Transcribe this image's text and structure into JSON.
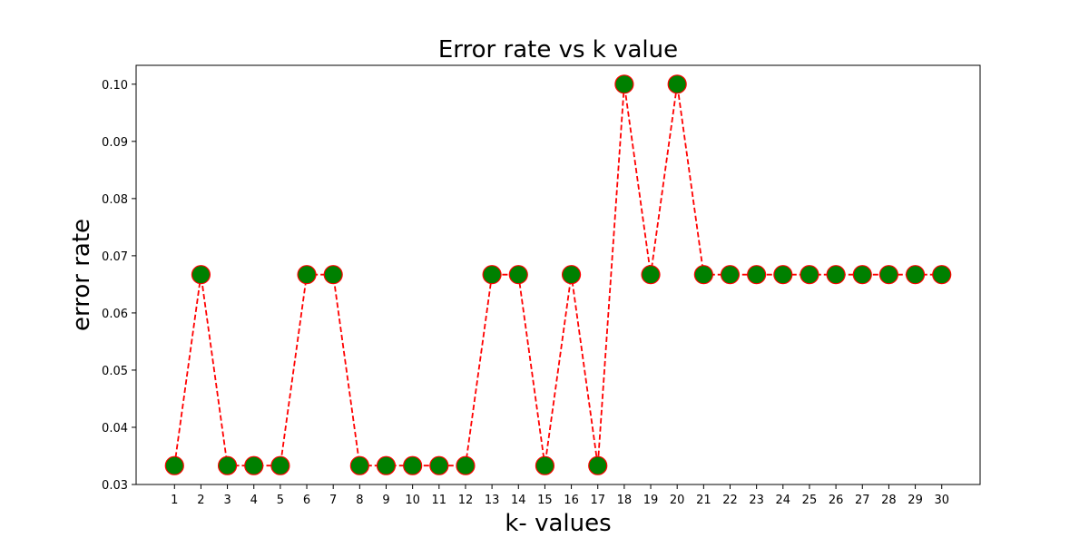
{
  "chart_data": {
    "type": "line",
    "title": "Error rate vs k value",
    "xlabel": "k- values",
    "ylabel": "error rate",
    "x": [
      1,
      2,
      3,
      4,
      5,
      6,
      7,
      8,
      9,
      10,
      11,
      12,
      13,
      14,
      15,
      16,
      17,
      18,
      19,
      20,
      21,
      22,
      23,
      24,
      25,
      26,
      27,
      28,
      29,
      30
    ],
    "series": [
      {
        "values": [
          0.0333,
          0.0667,
          0.0333,
          0.0333,
          0.0333,
          0.0667,
          0.0667,
          0.0333,
          0.0333,
          0.0333,
          0.0333,
          0.0333,
          0.0667,
          0.0667,
          0.0333,
          0.0667,
          0.0333,
          0.1,
          0.0667,
          0.1,
          0.0667,
          0.0667,
          0.0667,
          0.0667,
          0.0667,
          0.0667,
          0.0667,
          0.0667,
          0.0667,
          0.0667
        ],
        "line_color": "#ff0000",
        "line_style": "dashed",
        "marker": "circle",
        "marker_face_color": "#008000",
        "marker_edge_color": "#ff0000"
      }
    ],
    "xlim": [
      -0.45,
      31.45
    ],
    "ylim": [
      0.03,
      0.1033
    ],
    "x_ticks": [
      "1",
      "2",
      "3",
      "4",
      "5",
      "6",
      "7",
      "8",
      "9",
      "10",
      "11",
      "12",
      "13",
      "14",
      "15",
      "16",
      "17",
      "18",
      "19",
      "20",
      "21",
      "22",
      "23",
      "24",
      "25",
      "26",
      "27",
      "28",
      "29",
      "30"
    ],
    "y_ticks": [
      "0.03",
      "0.04",
      "0.05",
      "0.06",
      "0.07",
      "0.08",
      "0.09",
      "0.10"
    ],
    "y_tick_values": [
      0.03,
      0.04,
      0.05,
      0.06,
      0.07,
      0.08,
      0.09,
      0.1
    ],
    "grid": false,
    "legend": false
  }
}
